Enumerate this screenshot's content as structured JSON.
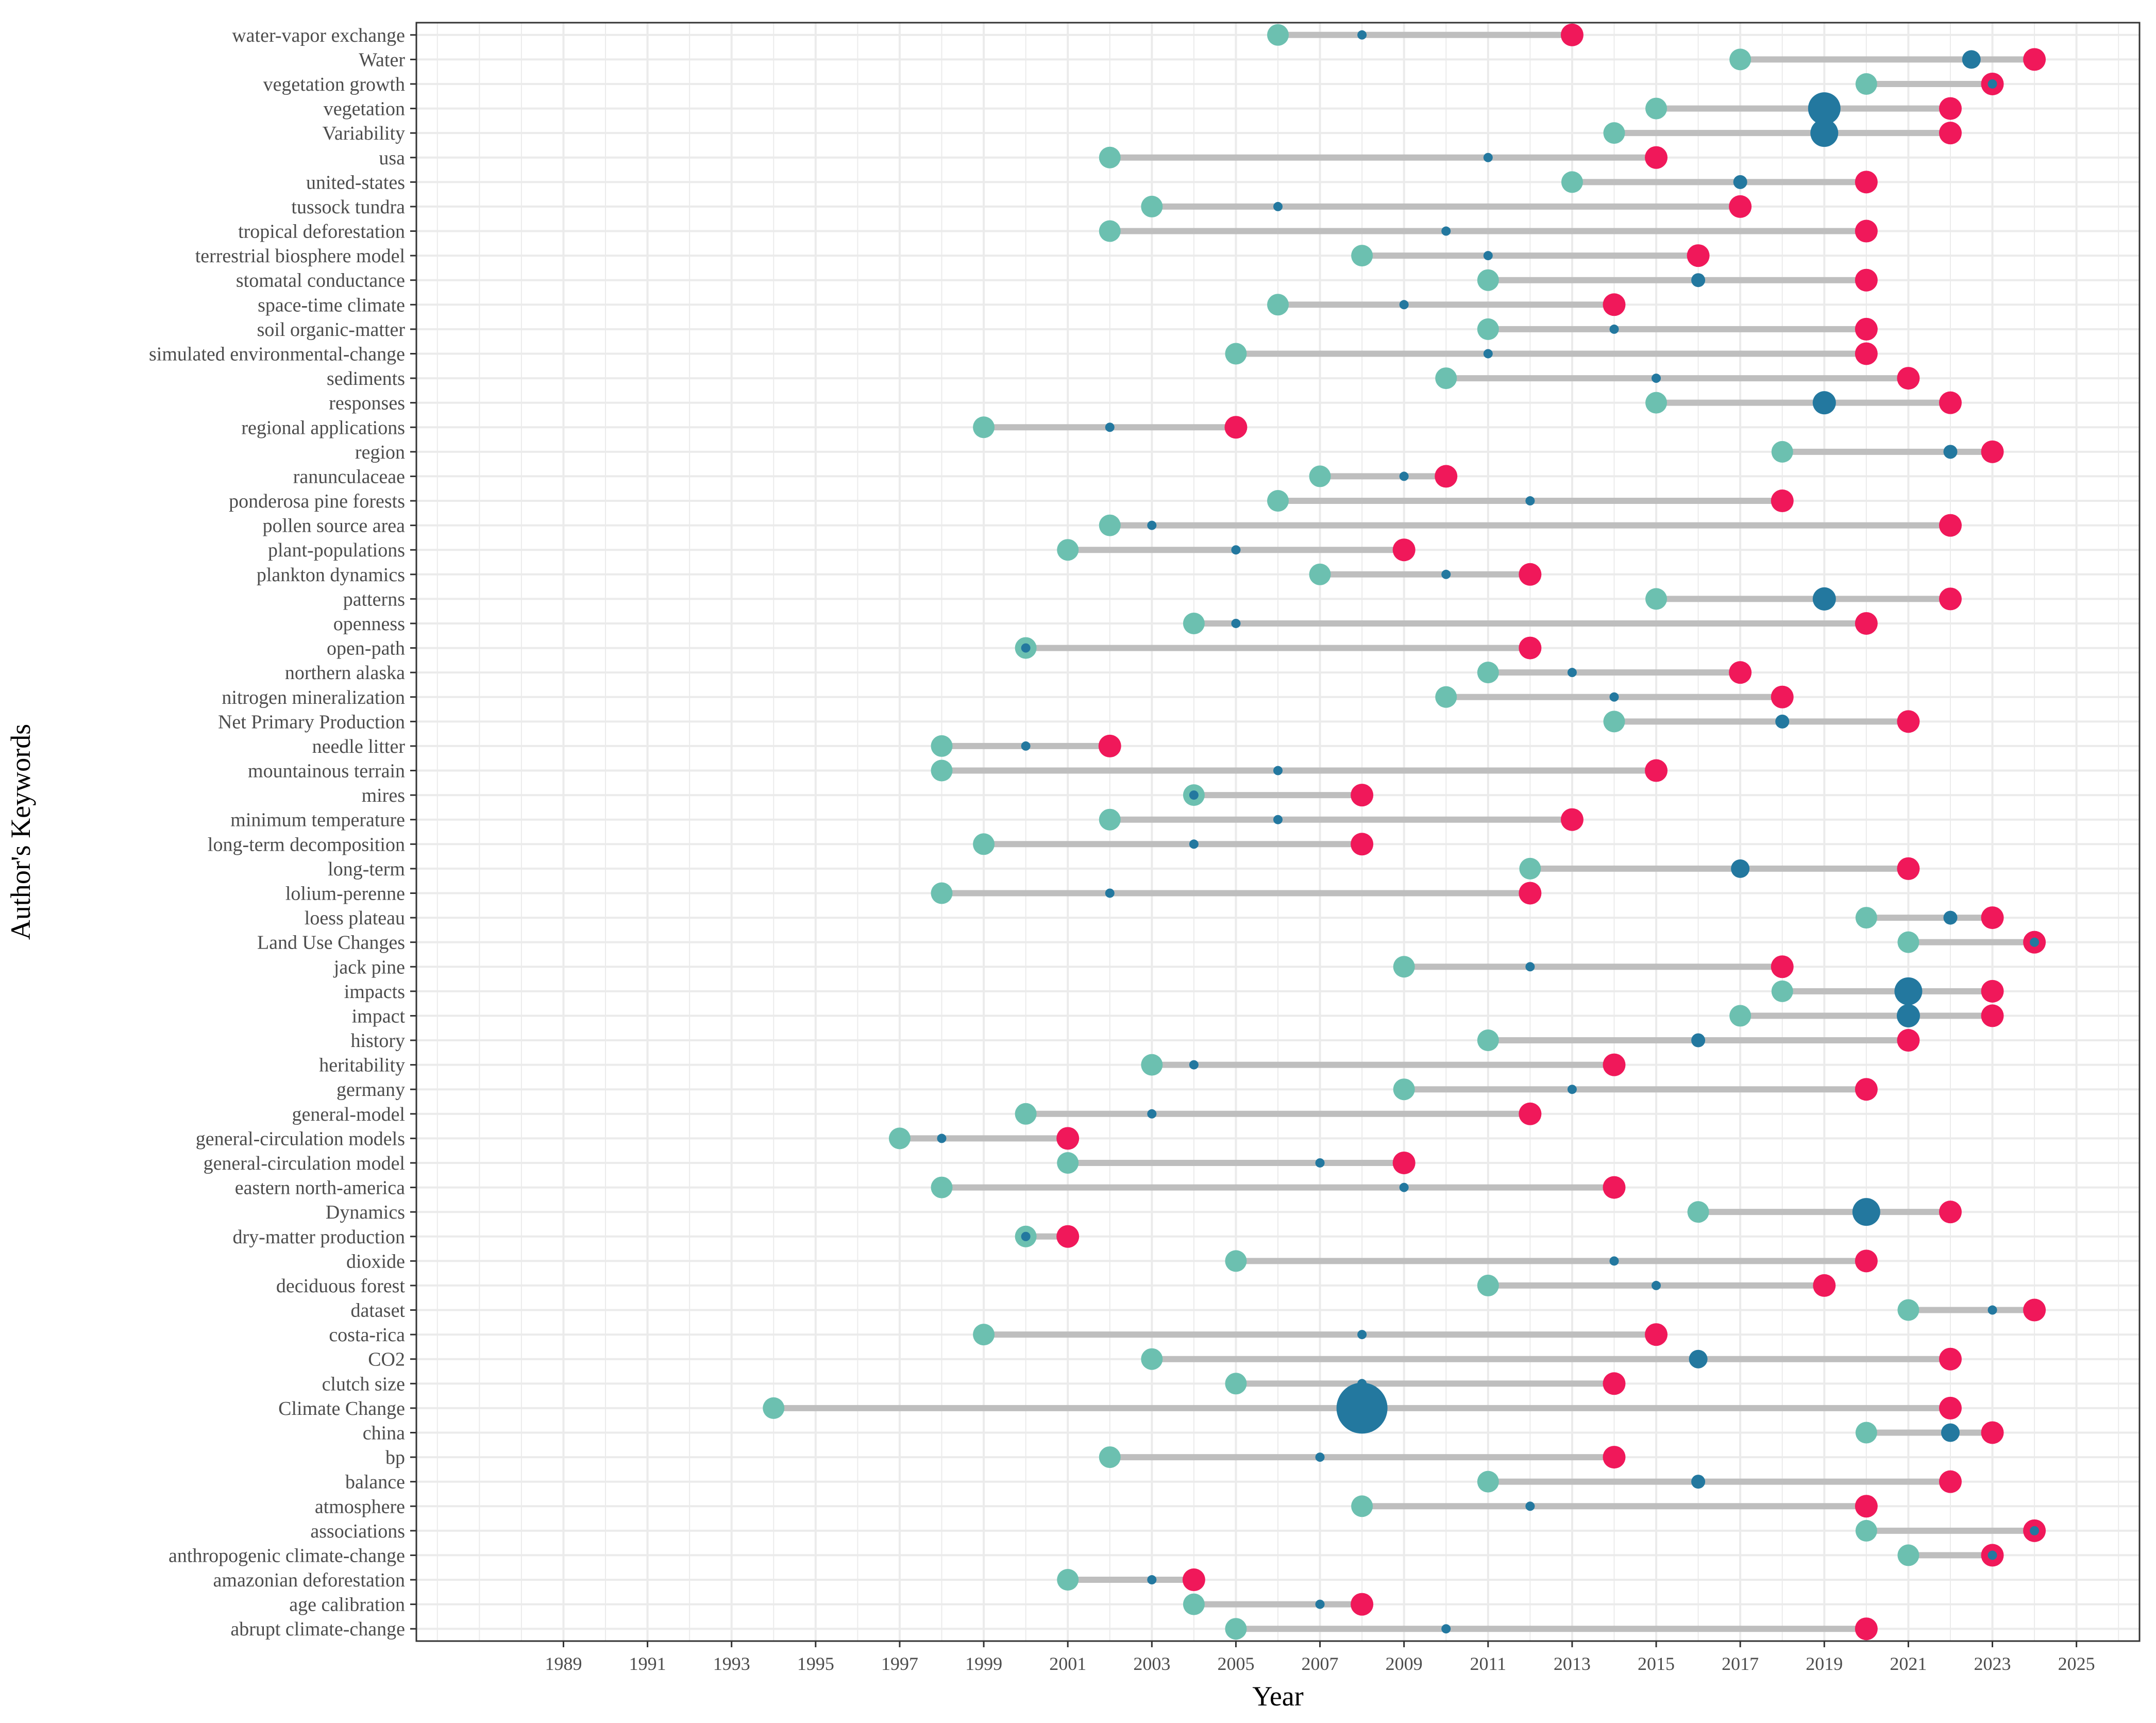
{
  "chart_data": {
    "type": "dumbbell",
    "xlabel": "Year",
    "ylabel": "Author's Keywords",
    "xlim": [
      1985.5,
      2026.5
    ],
    "xticks": [
      1989,
      1991,
      1993,
      1995,
      1997,
      1999,
      2001,
      2003,
      2005,
      2007,
      2009,
      2011,
      2013,
      2015,
      2017,
      2019,
      2021,
      2023,
      2025
    ],
    "colors": {
      "start": "#6cc0b0",
      "peak": "#23789f",
      "end": "#f0185a",
      "segment": "#bebebe",
      "grid": "#ebebeb",
      "border": "#333333"
    },
    "series_fields": [
      "keyword",
      "start_year",
      "peak_year",
      "end_year",
      "peak_frequency"
    ],
    "rows": [
      {
        "keyword": "water-vapor exchange",
        "start": 2006,
        "peak": 2008,
        "end": 2013,
        "freq": 1
      },
      {
        "keyword": "Water",
        "start": 2017,
        "peak": 2022.5,
        "end": 2024,
        "freq": 3
      },
      {
        "keyword": "vegetation growth",
        "start": 2020,
        "peak": 2023,
        "end": 2023,
        "freq": 1
      },
      {
        "keyword": "vegetation",
        "start": 2015,
        "peak": 2019,
        "end": 2022,
        "freq": 6
      },
      {
        "keyword": "Variability",
        "start": 2014,
        "peak": 2019,
        "end": 2022,
        "freq": 5
      },
      {
        "keyword": "usa",
        "start": 2002,
        "peak": 2011,
        "end": 2015,
        "freq": 1
      },
      {
        "keyword": "united-states",
        "start": 2013,
        "peak": 2017,
        "end": 2020,
        "freq": 2
      },
      {
        "keyword": "tussock tundra",
        "start": 2003,
        "peak": 2006,
        "end": 2017,
        "freq": 1
      },
      {
        "keyword": "tropical deforestation",
        "start": 2002,
        "peak": 2010,
        "end": 2020,
        "freq": 1
      },
      {
        "keyword": "terrestrial biosphere model",
        "start": 2008,
        "peak": 2011,
        "end": 2016,
        "freq": 1
      },
      {
        "keyword": "stomatal conductance",
        "start": 2011,
        "peak": 2016,
        "end": 2020,
        "freq": 2
      },
      {
        "keyword": "space-time climate",
        "start": 2006,
        "peak": 2009,
        "end": 2014,
        "freq": 1
      },
      {
        "keyword": "soil organic-matter",
        "start": 2011,
        "peak": 2014,
        "end": 2020,
        "freq": 1
      },
      {
        "keyword": "simulated environmental-change",
        "start": 2005,
        "peak": 2011,
        "end": 2020,
        "freq": 1
      },
      {
        "keyword": "sediments",
        "start": 2010,
        "peak": 2015,
        "end": 2021,
        "freq": 1
      },
      {
        "keyword": "responses",
        "start": 2015,
        "peak": 2019,
        "end": 2022,
        "freq": 4
      },
      {
        "keyword": "regional applications",
        "start": 1999,
        "peak": 2002,
        "end": 2005,
        "freq": 1
      },
      {
        "keyword": "region",
        "start": 2018,
        "peak": 2022,
        "end": 2023,
        "freq": 2
      },
      {
        "keyword": "ranunculaceae",
        "start": 2007,
        "peak": 2009,
        "end": 2010,
        "freq": 1
      },
      {
        "keyword": "ponderosa pine forests",
        "start": 2006,
        "peak": 2012,
        "end": 2018,
        "freq": 1
      },
      {
        "keyword": "pollen source area",
        "start": 2002,
        "peak": 2003,
        "end": 2022,
        "freq": 1
      },
      {
        "keyword": "plant-populations",
        "start": 2001,
        "peak": 2005,
        "end": 2009,
        "freq": 1
      },
      {
        "keyword": "plankton dynamics",
        "start": 2007,
        "peak": 2010,
        "end": 2012,
        "freq": 1
      },
      {
        "keyword": "patterns",
        "start": 2015,
        "peak": 2019,
        "end": 2022,
        "freq": 4
      },
      {
        "keyword": "openness",
        "start": 2004,
        "peak": 2005,
        "end": 2020,
        "freq": 1
      },
      {
        "keyword": "open-path",
        "start": 2000,
        "peak": 2000,
        "end": 2012,
        "freq": 1
      },
      {
        "keyword": "northern alaska",
        "start": 2011,
        "peak": 2013,
        "end": 2017,
        "freq": 1
      },
      {
        "keyword": "nitrogen mineralization",
        "start": 2010,
        "peak": 2014,
        "end": 2018,
        "freq": 1
      },
      {
        "keyword": "Net Primary Production",
        "start": 2014,
        "peak": 2018,
        "end": 2021,
        "freq": 2
      },
      {
        "keyword": "needle litter",
        "start": 1998,
        "peak": 2000,
        "end": 2002,
        "freq": 1
      },
      {
        "keyword": "mountainous terrain",
        "start": 1998,
        "peak": 2006,
        "end": 2015,
        "freq": 1
      },
      {
        "keyword": "mires",
        "start": 2004,
        "peak": 2004,
        "end": 2008,
        "freq": 1
      },
      {
        "keyword": "minimum temperature",
        "start": 2002,
        "peak": 2006,
        "end": 2013,
        "freq": 1
      },
      {
        "keyword": "long-term decomposition",
        "start": 1999,
        "peak": 2004,
        "end": 2008,
        "freq": 1
      },
      {
        "keyword": "long-term",
        "start": 2012,
        "peak": 2017,
        "end": 2021,
        "freq": 3
      },
      {
        "keyword": "lolium-perenne",
        "start": 1998,
        "peak": 2002,
        "end": 2012,
        "freq": 1
      },
      {
        "keyword": "loess plateau",
        "start": 2020,
        "peak": 2022,
        "end": 2023,
        "freq": 2
      },
      {
        "keyword": "Land Use Changes",
        "start": 2021,
        "peak": 2024,
        "end": 2024,
        "freq": 1
      },
      {
        "keyword": "jack pine",
        "start": 2009,
        "peak": 2012,
        "end": 2018,
        "freq": 1
      },
      {
        "keyword": "impacts",
        "start": 2018,
        "peak": 2021,
        "end": 2023,
        "freq": 5
      },
      {
        "keyword": "impact",
        "start": 2017,
        "peak": 2021,
        "end": 2023,
        "freq": 4
      },
      {
        "keyword": "history",
        "start": 2011,
        "peak": 2016,
        "end": 2021,
        "freq": 2
      },
      {
        "keyword": "heritability",
        "start": 2003,
        "peak": 2004,
        "end": 2014,
        "freq": 1
      },
      {
        "keyword": "germany",
        "start": 2009,
        "peak": 2013,
        "end": 2020,
        "freq": 1
      },
      {
        "keyword": "general-model",
        "start": 2000,
        "peak": 2003,
        "end": 2012,
        "freq": 1
      },
      {
        "keyword": "general-circulation models",
        "start": 1997,
        "peak": 1998,
        "end": 2001,
        "freq": 1
      },
      {
        "keyword": "general-circulation model",
        "start": 2001,
        "peak": 2007,
        "end": 2009,
        "freq": 1
      },
      {
        "keyword": "eastern north-america",
        "start": 1998,
        "peak": 2009,
        "end": 2014,
        "freq": 1
      },
      {
        "keyword": "Dynamics",
        "start": 2016,
        "peak": 2020,
        "end": 2022,
        "freq": 5
      },
      {
        "keyword": "dry-matter production",
        "start": 2000,
        "peak": 2000,
        "end": 2001,
        "freq": 1
      },
      {
        "keyword": "dioxide",
        "start": 2005,
        "peak": 2014,
        "end": 2020,
        "freq": 1
      },
      {
        "keyword": "deciduous forest",
        "start": 2011,
        "peak": 2015,
        "end": 2019,
        "freq": 1
      },
      {
        "keyword": "dataset",
        "start": 2021,
        "peak": 2023,
        "end": 2024,
        "freq": 1
      },
      {
        "keyword": "costa-rica",
        "start": 1999,
        "peak": 2008,
        "end": 2015,
        "freq": 1
      },
      {
        "keyword": "CO2",
        "start": 2003,
        "peak": 2016,
        "end": 2022,
        "freq": 3
      },
      {
        "keyword": "clutch size",
        "start": 2005,
        "peak": 2008,
        "end": 2014,
        "freq": 1
      },
      {
        "keyword": "Climate Change",
        "start": 1994,
        "peak": 2008,
        "end": 2022,
        "freq": 10
      },
      {
        "keyword": "china",
        "start": 2020,
        "peak": 2022,
        "end": 2023,
        "freq": 3
      },
      {
        "keyword": "bp",
        "start": 2002,
        "peak": 2007,
        "end": 2014,
        "freq": 1
      },
      {
        "keyword": "balance",
        "start": 2011,
        "peak": 2016,
        "end": 2022,
        "freq": 2
      },
      {
        "keyword": "atmosphere",
        "start": 2008,
        "peak": 2012,
        "end": 2020,
        "freq": 1
      },
      {
        "keyword": "associations",
        "start": 2020,
        "peak": 2024,
        "end": 2024,
        "freq": 1
      },
      {
        "keyword": "anthropogenic climate-change",
        "start": 2021,
        "peak": 2023,
        "end": 2023,
        "freq": 1
      },
      {
        "keyword": "amazonian deforestation",
        "start": 2001,
        "peak": 2003,
        "end": 2004,
        "freq": 1
      },
      {
        "keyword": "age calibration",
        "start": 2004,
        "peak": 2007,
        "end": 2008,
        "freq": 1
      },
      {
        "keyword": "abrupt climate-change",
        "start": 2005,
        "peak": 2010,
        "end": 2020,
        "freq": 1
      }
    ]
  }
}
